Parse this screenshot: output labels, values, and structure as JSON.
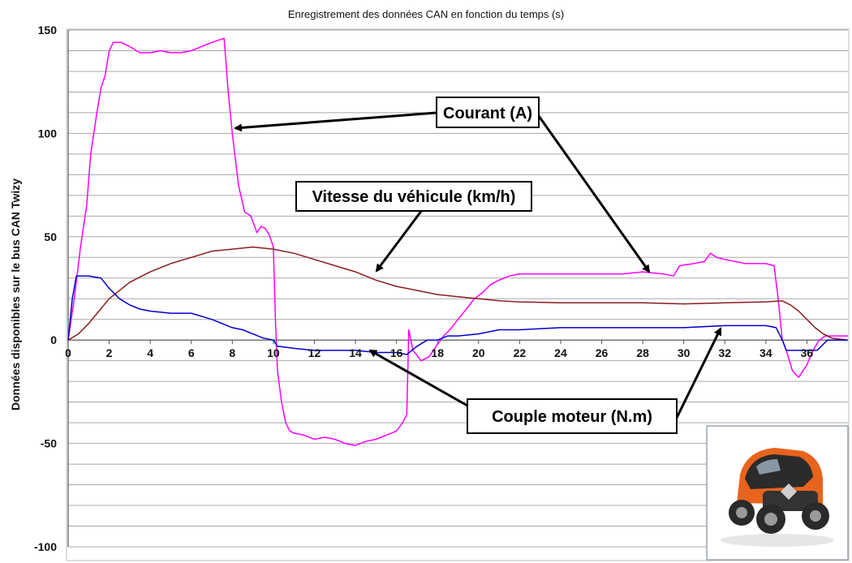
{
  "chart_data": {
    "type": "line",
    "title": "Enregistrement des données CAN en fonction du temps (s)",
    "xlabel": "",
    "ylabel": "Données disponibles sur le bus CAN Twizy",
    "xlim": [
      0,
      38
    ],
    "ylim": [
      -100,
      150
    ],
    "x_ticks": [
      0,
      2,
      4,
      6,
      8,
      10,
      12,
      14,
      16,
      18,
      20,
      22,
      24,
      26,
      28,
      30,
      32,
      34,
      36
    ],
    "y_ticks": [
      150,
      100,
      50,
      0,
      -50,
      -100
    ],
    "grid": true,
    "series": [
      {
        "name": "Courant (A)",
        "color": "#ff00ff",
        "x": [
          0,
          0.3,
          0.6,
          0.9,
          1.1,
          1.4,
          1.6,
          1.8,
          2.0,
          2.2,
          2.6,
          3.0,
          3.5,
          4.0,
          4.5,
          5.0,
          5.5,
          6.0,
          6.5,
          7.0,
          7.3,
          7.6,
          7.8,
          8.0,
          8.3,
          8.6,
          8.9,
          9.2,
          9.4,
          9.6,
          9.8,
          10.0,
          10.1,
          10.2,
          10.4,
          10.6,
          10.8,
          11.0,
          11.5,
          12.0,
          12.5,
          13.0,
          13.5,
          14.0,
          14.5,
          15.0,
          15.5,
          16.0,
          16.3,
          16.5,
          16.6,
          16.8,
          17.2,
          17.6,
          18.0,
          18.3,
          18.6,
          19.0,
          19.4,
          19.8,
          20.2,
          20.6,
          21.0,
          21.5,
          22.0,
          24.0,
          26.0,
          27.0,
          28.0,
          29.0,
          29.5,
          29.8,
          30.5,
          31.0,
          31.3,
          31.6,
          32.0,
          33.0,
          34.0,
          34.4,
          34.6,
          34.8,
          35.0,
          35.3,
          35.6,
          36.0,
          36.3,
          36.6,
          36.9,
          37.2,
          38.0
        ],
        "values": [
          0,
          20,
          45,
          65,
          90,
          110,
          122,
          128,
          140,
          144,
          144,
          142,
          139,
          139,
          140,
          139,
          139,
          140,
          142,
          144,
          145,
          146,
          120,
          100,
          75,
          62,
          60,
          52,
          55,
          54,
          51,
          45,
          10,
          -15,
          -30,
          -40,
          -44,
          -45,
          -46,
          -48,
          -47,
          -48,
          -50,
          -51,
          -49,
          -48,
          -46,
          -44,
          -40,
          -36,
          5,
          -5,
          -10,
          -8,
          -2,
          2,
          5,
          10,
          15,
          20,
          23,
          27,
          29,
          31,
          32,
          32,
          32,
          32,
          33,
          32,
          31,
          36,
          37,
          38,
          42,
          40,
          39,
          37,
          37,
          36,
          20,
          0,
          -5,
          -15,
          -18,
          -12,
          -5,
          0,
          2,
          2,
          2
        ]
      },
      {
        "name": "Vitesse du véhicule (km/h)",
        "color": "#8b1c1c",
        "x": [
          0,
          0.5,
          1,
          1.5,
          2,
          3,
          4,
          5,
          6,
          7,
          8,
          9,
          10,
          11,
          12,
          13,
          14,
          15,
          16,
          17,
          18,
          19,
          20,
          21,
          22,
          24,
          26,
          28,
          30,
          32,
          34,
          34.8,
          35.2,
          35.6,
          36.0,
          36.4,
          36.8,
          37.2,
          38
        ],
        "values": [
          0,
          3,
          8,
          14,
          20,
          28,
          33,
          37,
          40,
          43,
          44,
          45,
          44,
          42,
          39,
          36,
          33,
          29,
          26,
          24,
          22,
          21,
          20,
          19,
          18.5,
          18,
          18,
          18,
          17.5,
          18,
          18.5,
          19,
          17,
          14,
          10,
          6,
          3,
          1,
          0
        ]
      },
      {
        "name": "Couple moteur (N.m)",
        "color": "#0000cc",
        "x": [
          0,
          0.2,
          0.4,
          0.6,
          1.0,
          1.6,
          2.0,
          2.5,
          3.0,
          3.5,
          4.0,
          5.0,
          6.0,
          7.0,
          7.5,
          8.0,
          8.5,
          9.0,
          9.5,
          10.0,
          10.2,
          11.0,
          12.0,
          13.0,
          14.0,
          15.0,
          16.0,
          16.5,
          17.0,
          17.5,
          18.0,
          18.5,
          19.0,
          20.0,
          21.0,
          22.0,
          24.0,
          26.0,
          28.0,
          30.0,
          32.0,
          34.0,
          34.5,
          34.8,
          35.0,
          36.0,
          36.5,
          37.0,
          38.0
        ],
        "values": [
          0,
          20,
          31,
          31,
          31,
          30,
          25,
          20,
          17,
          15,
          14,
          13,
          13,
          10,
          8,
          6,
          5,
          3,
          1,
          0,
          -3,
          -4,
          -5,
          -5,
          -5,
          -6,
          -6,
          -7,
          -3,
          0,
          0,
          2,
          2,
          3,
          5,
          5,
          6,
          6,
          6,
          6,
          7,
          7,
          6,
          0,
          -5,
          -5,
          -5,
          0,
          0
        ]
      }
    ],
    "annotations": [
      {
        "text": "Courant (A)",
        "target": "Courant (A)"
      },
      {
        "text": "Vitesse du véhicule (km/h)",
        "target": "Vitesse du véhicule (km/h)"
      },
      {
        "text": "Couple moteur (N.m)",
        "target": "Couple moteur (N.m)"
      }
    ]
  },
  "inset_image": {
    "subject": "Renault Twizy orange vehicle photo",
    "accent": "#e8641e"
  }
}
